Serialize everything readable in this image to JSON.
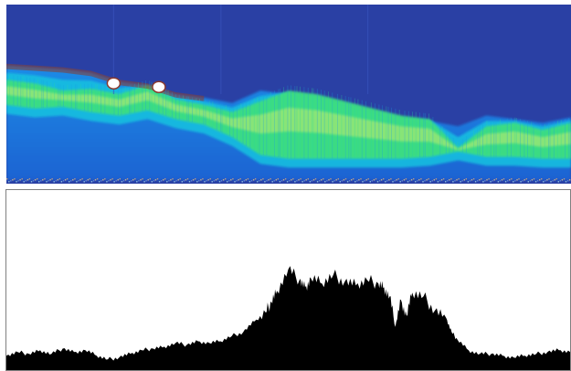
{
  "chart_data": [
    {
      "type": "heatmap",
      "title": "",
      "xlabel": "",
      "ylabel": "",
      "colormap": [
        "#2a3fa2",
        "#1f7ee8",
        "#16c3e0",
        "#3fe07a",
        "#e7f06a",
        "#8a3a2e",
        "#ffffff"
      ],
      "background_color": "#2a40a4",
      "x": [
        0,
        0.05,
        0.1,
        0.15,
        0.2,
        0.25,
        0.3,
        0.35,
        0.4,
        0.45,
        0.5,
        0.55,
        0.6,
        0.65,
        0.7,
        0.75,
        0.8,
        0.85,
        0.9,
        0.95,
        1.0
      ],
      "upper_band_top": [
        0.66,
        0.65,
        0.64,
        0.62,
        0.57,
        0.55,
        0.5,
        0.48,
        0.45,
        0.52,
        0.5,
        0.48,
        0.44,
        0.4,
        0.36,
        0.35,
        0.32,
        0.38,
        0.36,
        0.34,
        0.37
      ],
      "green_band_top": [
        0.58,
        0.56,
        0.52,
        0.53,
        0.5,
        0.55,
        0.47,
        0.44,
        0.4,
        0.46,
        0.52,
        0.5,
        0.46,
        0.42,
        0.38,
        0.36,
        0.2,
        0.32,
        0.34,
        0.3,
        0.34
      ],
      "green_band_bottom": [
        0.44,
        0.42,
        0.43,
        0.4,
        0.38,
        0.41,
        0.36,
        0.33,
        0.26,
        0.16,
        0.14,
        0.14,
        0.14,
        0.14,
        0.14,
        0.15,
        0.18,
        0.15,
        0.15,
        0.14,
        0.14
      ],
      "hotspots": [
        {
          "x": 0.19,
          "y": 0.56
        },
        {
          "x": 0.27,
          "y": 0.54
        }
      ]
    },
    {
      "type": "area",
      "title": "",
      "xlabel": "",
      "ylabel": "",
      "fill_color": "#000000",
      "ylim": [
        0,
        1
      ],
      "x": [
        0,
        0.02,
        0.04,
        0.06,
        0.08,
        0.1,
        0.12,
        0.14,
        0.16,
        0.18,
        0.2,
        0.22,
        0.24,
        0.26,
        0.28,
        0.3,
        0.32,
        0.34,
        0.36,
        0.38,
        0.4,
        0.42,
        0.44,
        0.46,
        0.47,
        0.48,
        0.5,
        0.52,
        0.53,
        0.54,
        0.56,
        0.58,
        0.6,
        0.62,
        0.64,
        0.66,
        0.67,
        0.68,
        0.69,
        0.7,
        0.71,
        0.72,
        0.74,
        0.76,
        0.78,
        0.79,
        0.8,
        0.82,
        0.84,
        0.86,
        0.88,
        0.9,
        0.92,
        0.94,
        0.96,
        0.98,
        1.0
      ],
      "y": [
        0.08,
        0.1,
        0.09,
        0.11,
        0.09,
        0.12,
        0.1,
        0.11,
        0.08,
        0.06,
        0.07,
        0.09,
        0.11,
        0.12,
        0.13,
        0.15,
        0.14,
        0.16,
        0.15,
        0.16,
        0.19,
        0.21,
        0.27,
        0.32,
        0.38,
        0.44,
        0.56,
        0.5,
        0.46,
        0.51,
        0.48,
        0.53,
        0.49,
        0.47,
        0.5,
        0.48,
        0.46,
        0.41,
        0.24,
        0.39,
        0.3,
        0.43,
        0.41,
        0.33,
        0.29,
        0.21,
        0.17,
        0.11,
        0.09,
        0.09,
        0.08,
        0.07,
        0.08,
        0.09,
        0.1,
        0.11,
        0.1
      ]
    }
  ]
}
